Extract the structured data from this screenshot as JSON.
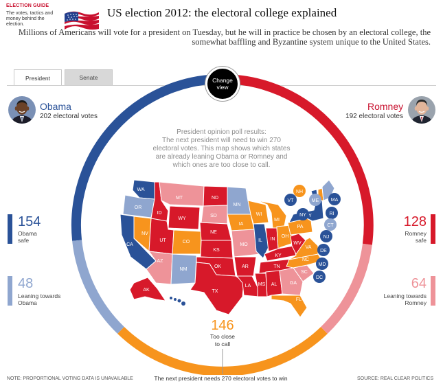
{
  "guide": {
    "label": "ELECTION GUIDE",
    "subtitle": "The votes, tactics and money behind the election."
  },
  "headline": "US election 2012: the electoral college explained",
  "standfirst": "Millions of Americans will vote for a president on Tuesday, but he will in practice be chosen by an electoral college, the somewhat baffling and Byzantine system unique to the United States.",
  "tabs": [
    {
      "label": "President"
    },
    {
      "label": "Senate"
    }
  ],
  "change_view": {
    "line1": "Change",
    "line2": "view"
  },
  "obama": {
    "name": "Obama",
    "votes": "202 electoral votes"
  },
  "romney": {
    "name": "Romney",
    "votes": "192 electoral votes"
  },
  "categories": {
    "obama_safe": {
      "value": "154",
      "line1": "Obama",
      "line2": "safe",
      "color": "#2a5298"
    },
    "obama_lean": {
      "value": "48",
      "line1": "Leaning towards",
      "line2": "Obama",
      "color": "#8fa6cf"
    },
    "romney_safe": {
      "value": "128",
      "line1": "Romney",
      "line2": "safe",
      "color": "#d7192a"
    },
    "romney_lean": {
      "value": "64",
      "line1": "Leaning towards",
      "line2": "Romney",
      "color": "#ee9399"
    },
    "tossup": {
      "value": "146",
      "line1": "Too close",
      "line2": "to call",
      "color": "#f7941d"
    }
  },
  "poll": {
    "title": "President opinion poll results:",
    "line1": "The next president will need to win 270",
    "line2": "electoral votes. This map shows which states",
    "line3": "are already leaning Obama or Romney and",
    "line4": "which ones are too close to call."
  },
  "states": [
    "WA",
    "OR",
    "CA",
    "NV",
    "ID",
    "MT",
    "WY",
    "UT",
    "AZ",
    "CO",
    "NM",
    "ND",
    "SD",
    "NE",
    "KS",
    "OK",
    "TX",
    "MN",
    "IA",
    "MO",
    "AR",
    "LA",
    "WI",
    "IL",
    "MI",
    "IN",
    "OH",
    "KY",
    "TN",
    "MS",
    "AL",
    "GA",
    "FL",
    "SC",
    "NC",
    "VA",
    "WV",
    "PA",
    "NY",
    "VT",
    "NH",
    "ME",
    "MA",
    "RI",
    "CT",
    "NJ",
    "DE",
    "MD",
    "DC",
    "AK",
    "HI"
  ],
  "footer": {
    "note": "NOTE: PROPORTIONAL VOTING DATA IS UNAVAILABLE",
    "center": "The next president needs 270 electoral votes to win",
    "source": "SOURCE: REAL CLEAR POLITICS"
  }
}
